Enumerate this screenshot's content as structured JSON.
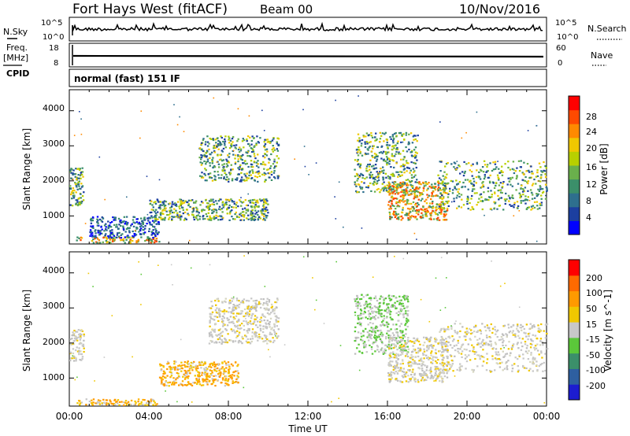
{
  "header": {
    "station": "Fort Hays West (fitACF)",
    "beam": "Beam 00",
    "date": "10/Nov/2016"
  },
  "strip_panels": {
    "nsky_label": "N.Sky",
    "nsky_ticks": [
      "10^5",
      "10^0"
    ],
    "nsearch_label": "N.Search",
    "nsearch_ticks": [
      "10^5",
      "10^0"
    ],
    "freq_label": "Freq.",
    "freq_units": "[MHz]",
    "freq_ticks": [
      "18",
      "8"
    ],
    "nave_label": "Nave",
    "nave_ticks": [
      "60",
      "0"
    ],
    "cpid_label": "CPID",
    "cpid_text": "normal (fast) 151 IF"
  },
  "chart_data": [
    {
      "type": "heatmap",
      "title": "",
      "ylabel": "Slant Range [km]",
      "xlabel": "",
      "ylim": [
        200,
        4600
      ],
      "yticks": [
        "4000",
        "3000",
        "2000",
        "1000"
      ],
      "xticks": [
        "00:00",
        "04:00",
        "08:00",
        "12:00",
        "16:00",
        "20:00",
        "00:00"
      ],
      "colorbar": {
        "label": "Power [dB]",
        "ticks": [
          "28",
          "24",
          "20",
          "16",
          "12",
          "8",
          "4"
        ],
        "colors": [
          "#0000ff",
          "#1c3fa0",
          "#2e6f8e",
          "#3b8f6a",
          "#6ab04c",
          "#b8d000",
          "#f0c800",
          "#ff8a00",
          "#ff4a00",
          "#ff0000"
        ]
      },
      "regions": [
        {
          "t_start": 0.0,
          "t_end": 0.7,
          "r_min": 1300,
          "r_max": 2400,
          "level": "mid"
        },
        {
          "t_start": 0.3,
          "t_end": 4.5,
          "r_min": 250,
          "r_max": 420,
          "level": "high"
        },
        {
          "t_start": 1.0,
          "t_end": 4.5,
          "r_min": 400,
          "r_max": 1000,
          "level": "low"
        },
        {
          "t_start": 4.0,
          "t_end": 10.0,
          "r_min": 900,
          "r_max": 1500,
          "level": "mid"
        },
        {
          "t_start": 6.5,
          "t_end": 10.5,
          "r_min": 2000,
          "r_max": 3300,
          "level": "mid"
        },
        {
          "t_start": 14.3,
          "t_end": 17.5,
          "r_min": 1700,
          "r_max": 3400,
          "level": "mid"
        },
        {
          "t_start": 16.0,
          "t_end": 19.0,
          "r_min": 900,
          "r_max": 2000,
          "level": "high"
        },
        {
          "t_start": 18.5,
          "t_end": 24.0,
          "r_min": 1200,
          "r_max": 2600,
          "level": "mid"
        }
      ]
    },
    {
      "type": "heatmap",
      "title": "",
      "ylabel": "Slant Range [km]",
      "xlabel": "Time UT",
      "ylim": [
        200,
        4600
      ],
      "yticks": [
        "4000",
        "3000",
        "2000",
        "1000"
      ],
      "xticks": [
        "00:00",
        "04:00",
        "08:00",
        "12:00",
        "16:00",
        "20:00",
        "00:00"
      ],
      "colorbar": {
        "label": "Velocity [m s^-1]",
        "ticks": [
          "200",
          "100",
          "50",
          "15",
          "-15",
          "-50",
          "-100",
          "-200"
        ],
        "colors": [
          "#1c1cd0",
          "#2e5fa0",
          "#3b8f6a",
          "#5bc83a",
          "#c8c8c8",
          "#f0c800",
          "#ff9a00",
          "#ff6a00",
          "#ff0000"
        ]
      },
      "regions": [
        {
          "t_start": 0.0,
          "t_end": 0.7,
          "r_min": 1500,
          "r_max": 2400,
          "level": "grey"
        },
        {
          "t_start": 0.3,
          "t_end": 4.5,
          "r_min": 250,
          "r_max": 420,
          "level": "orange"
        },
        {
          "t_start": 4.5,
          "t_end": 8.5,
          "r_min": 800,
          "r_max": 1500,
          "level": "orange"
        },
        {
          "t_start": 7.0,
          "t_end": 10.5,
          "r_min": 2000,
          "r_max": 3300,
          "level": "grey"
        },
        {
          "t_start": 14.3,
          "t_end": 17.0,
          "r_min": 1700,
          "r_max": 3400,
          "level": "green"
        },
        {
          "t_start": 16.0,
          "t_end": 19.0,
          "r_min": 900,
          "r_max": 2200,
          "level": "grey"
        },
        {
          "t_start": 18.5,
          "t_end": 24.0,
          "r_min": 1200,
          "r_max": 2600,
          "level": "grey"
        }
      ]
    }
  ]
}
